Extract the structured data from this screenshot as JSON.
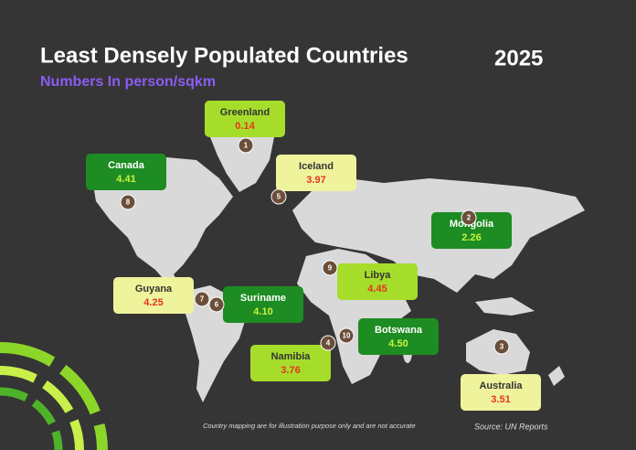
{
  "header": {
    "title": "Least Densely Populated Countries",
    "subtitle": "Numbers In person/sqkm",
    "year": "2025"
  },
  "countries": [
    {
      "rank": "1",
      "name": "Greenland",
      "value": "0.14"
    },
    {
      "rank": "2",
      "name": "Mongolia",
      "value": "2.26"
    },
    {
      "rank": "3",
      "name": "Australia",
      "value": "3.51"
    },
    {
      "rank": "4",
      "name": "Namibia",
      "value": "3.76"
    },
    {
      "rank": "5",
      "name": "Iceland",
      "value": "3.97"
    },
    {
      "rank": "6",
      "name": "Suriname",
      "value": "4.10"
    },
    {
      "rank": "7",
      "name": "Guyana",
      "value": "4.25"
    },
    {
      "rank": "8",
      "name": "Canada",
      "value": "4.41"
    },
    {
      "rank": "9",
      "name": "Libya",
      "value": "4.45"
    },
    {
      "rank": "10",
      "name": "Botswana",
      "value": "4.50"
    }
  ],
  "footnote": "Country mapping are for illustration purpose only and are not accurate",
  "source": "Source: UN Reports"
}
